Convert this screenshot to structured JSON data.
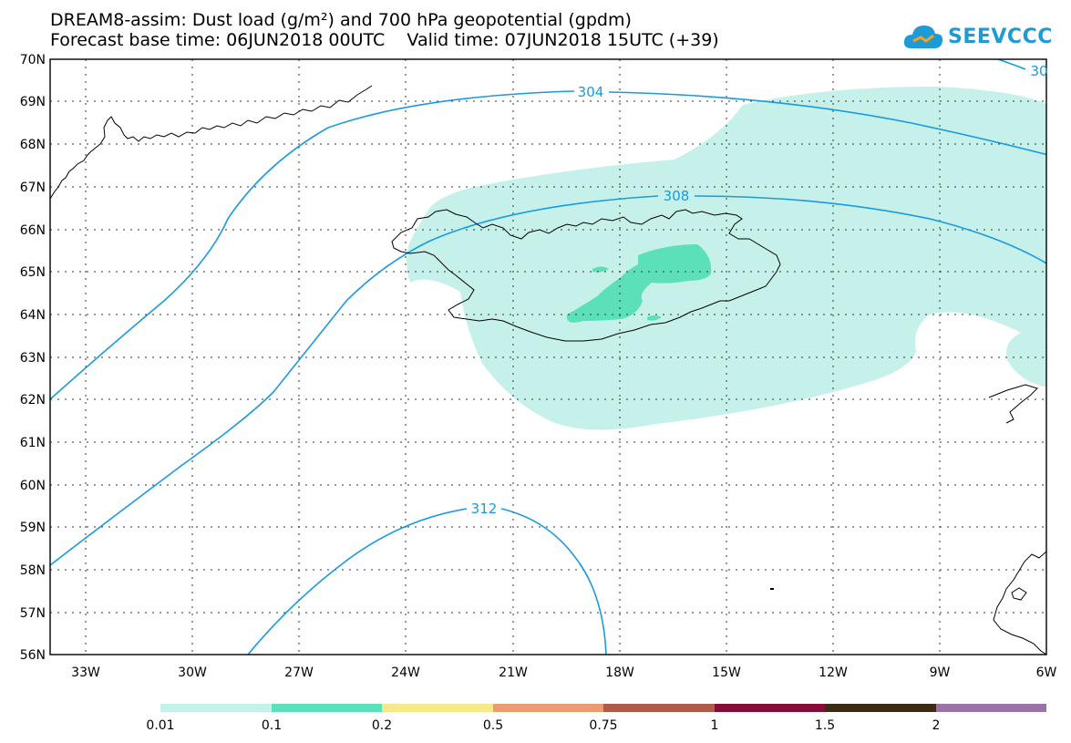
{
  "title_line1": "DREAM8-assim: Dust load (g/m²) and 700 hPa geopotential (gpdm)",
  "title_line2": "Forecast base time: 06JUN2018 00UTC    Valid time: 07JUN2018 15UTC (+39)",
  "logo_text": "SEEVCCC",
  "map": {
    "lat_ticks": [
      "70N",
      "69N",
      "68N",
      "67N",
      "66N",
      "65N",
      "64N",
      "63N",
      "62N",
      "61N",
      "60N",
      "59N",
      "58N",
      "57N",
      "56N"
    ],
    "lon_ticks": [
      "33W",
      "30W",
      "27W",
      "24W",
      "21W",
      "18W",
      "15W",
      "12W",
      "9W",
      "6W"
    ],
    "contour_labels": [
      "304",
      "308",
      "312",
      "30"
    ]
  },
  "colorbar": {
    "labels": [
      "0.01",
      "0.1",
      "0.2",
      "0.5",
      "0.75",
      "1",
      "1.5",
      "2"
    ],
    "colors": [
      "#c5f1ea",
      "#5ce0ba",
      "#f7e98a",
      "#ec9a70",
      "#b05a4a",
      "#870c37",
      "#3b2b14",
      "#9a72a8"
    ]
  },
  "colors": {
    "contour": "#1a9ae0",
    "dust_low": "#c5f1ea",
    "dust_mid": "#5ce0ba",
    "coast": "#000000"
  }
}
